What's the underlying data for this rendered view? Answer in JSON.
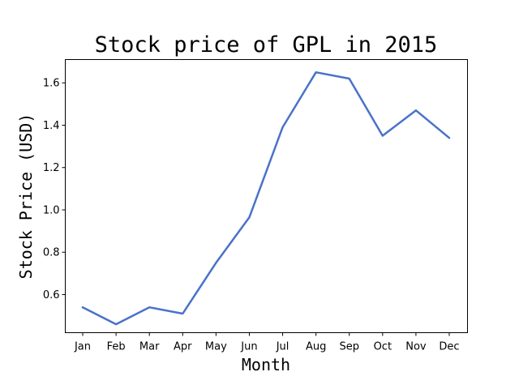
{
  "chart_data": {
    "type": "line",
    "title": "Stock price of GPL in 2015",
    "xlabel": "Month",
    "ylabel": "Stock Price (USD)",
    "categories": [
      "Jan",
      "Feb",
      "Mar",
      "Apr",
      "May",
      "Jun",
      "Jul",
      "Aug",
      "Sep",
      "Oct",
      "Nov",
      "Dec"
    ],
    "series": [
      {
        "values": [
          0.54,
          0.46,
          0.54,
          0.51,
          0.75,
          0.965,
          1.39,
          1.65,
          1.62,
          1.35,
          1.47,
          1.34
        ],
        "color": "#4a72c8"
      }
    ],
    "ylim": [
      0.42,
      1.71
    ],
    "yticks": [
      0.6,
      0.8,
      1.0,
      1.2,
      1.4,
      1.6
    ],
    "ytick_labels": [
      "0.6",
      "0.8",
      "1.0",
      "1.2",
      "1.4",
      "1.6"
    ],
    "grid": false,
    "legend": "none"
  }
}
